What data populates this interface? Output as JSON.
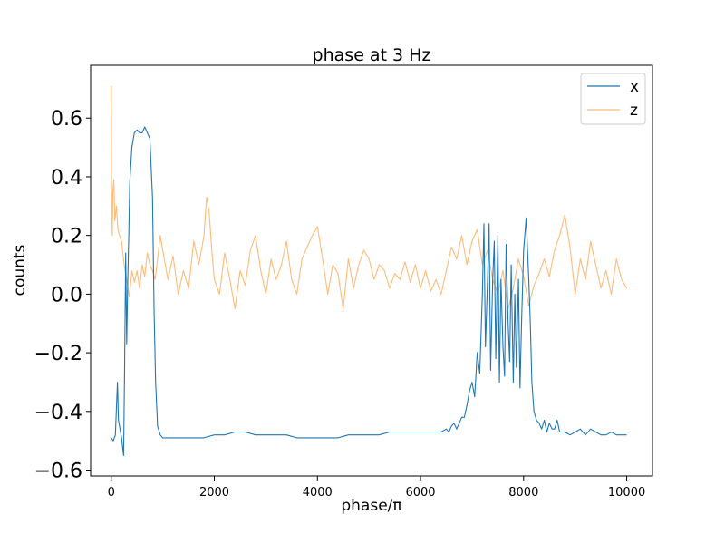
{
  "chart_data": {
    "type": "line",
    "title": "phase at 3 Hz",
    "xlabel": "phase/π",
    "ylabel": "counts",
    "xlim": [
      -400,
      10500
    ],
    "ylim": [
      -0.62,
      0.78
    ],
    "x_ticks": [
      0,
      2000,
      4000,
      6000,
      8000,
      10000
    ],
    "x_tick_labels": [
      "0",
      "2000",
      "4000",
      "6000",
      "8000",
      "10000"
    ],
    "y_ticks": [
      -0.6,
      -0.4,
      -0.2,
      0.0,
      0.2,
      0.4,
      0.6
    ],
    "y_tick_labels": [
      "−0.6",
      "−0.4",
      "−0.2",
      "0.0",
      "0.2",
      "0.4",
      "0.6"
    ],
    "grid": false,
    "legend": {
      "position": "top-right",
      "entries": [
        "x",
        "z"
      ]
    },
    "series": [
      {
        "name": "x",
        "color": "#1f77b4",
        "x": [
          0,
          40,
          80,
          120,
          140,
          160,
          200,
          240,
          260,
          280,
          300,
          320,
          340,
          360,
          400,
          450,
          500,
          550,
          600,
          650,
          700,
          750,
          800,
          830,
          860,
          900,
          950,
          1000,
          1100,
          1200,
          1400,
          1600,
          1800,
          2000,
          2200,
          2400,
          2600,
          2800,
          3000,
          3200,
          3400,
          3600,
          3800,
          4000,
          4200,
          4400,
          4600,
          4800,
          5000,
          5200,
          5400,
          5600,
          5800,
          6000,
          6200,
          6400,
          6500,
          6550,
          6600,
          6650,
          6700,
          6750,
          6800,
          6850,
          6900,
          6950,
          7000,
          7050,
          7100,
          7150,
          7200,
          7230,
          7260,
          7300,
          7330,
          7360,
          7400,
          7430,
          7460,
          7500,
          7530,
          7560,
          7600,
          7630,
          7660,
          7700,
          7730,
          7760,
          7800,
          7830,
          7860,
          7900,
          7930,
          7960,
          8000,
          8050,
          8100,
          8130,
          8160,
          8200,
          8250,
          8300,
          8350,
          8400,
          8450,
          8500,
          8550,
          8600,
          8650,
          8700,
          8800,
          8900,
          9000,
          9100,
          9200,
          9300,
          9400,
          9500,
          9600,
          9700,
          9800,
          9900,
          10000
        ],
        "y": [
          -0.49,
          -0.5,
          -0.48,
          -0.3,
          -0.43,
          -0.45,
          -0.49,
          -0.55,
          -0.25,
          0.14,
          -0.17,
          0.05,
          0.2,
          0.38,
          0.5,
          0.55,
          0.56,
          0.55,
          0.55,
          0.57,
          0.55,
          0.53,
          0.33,
          -0.05,
          -0.3,
          -0.45,
          -0.48,
          -0.49,
          -0.49,
          -0.49,
          -0.49,
          -0.49,
          -0.49,
          -0.48,
          -0.48,
          -0.47,
          -0.47,
          -0.48,
          -0.48,
          -0.48,
          -0.48,
          -0.49,
          -0.49,
          -0.49,
          -0.49,
          -0.49,
          -0.48,
          -0.48,
          -0.48,
          -0.48,
          -0.47,
          -0.47,
          -0.47,
          -0.47,
          -0.47,
          -0.47,
          -0.46,
          -0.47,
          -0.45,
          -0.44,
          -0.46,
          -0.44,
          -0.42,
          -0.42,
          -0.38,
          -0.33,
          -0.3,
          -0.35,
          -0.2,
          -0.27,
          0.0,
          0.24,
          -0.18,
          0.05,
          0.24,
          -0.26,
          0.05,
          0.18,
          -0.22,
          0.2,
          -0.3,
          0.05,
          -0.18,
          -0.28,
          0.17,
          -0.1,
          -0.23,
          0.1,
          -0.3,
          0.0,
          -0.25,
          0.05,
          -0.32,
          -0.1,
          0.15,
          0.26,
          0.05,
          -0.1,
          -0.3,
          -0.4,
          -0.43,
          -0.44,
          -0.46,
          -0.43,
          -0.47,
          -0.44,
          -0.46,
          -0.46,
          -0.43,
          -0.47,
          -0.47,
          -0.48,
          -0.47,
          -0.46,
          -0.48,
          -0.46,
          -0.47,
          -0.48,
          -0.48,
          -0.47,
          -0.48,
          -0.48,
          -0.48
        ]
      },
      {
        "name": "z",
        "color": "#ffbb78",
        "x": [
          0,
          5,
          10,
          20,
          30,
          50,
          70,
          100,
          130,
          160,
          200,
          250,
          300,
          350,
          400,
          450,
          500,
          550,
          600,
          650,
          700,
          750,
          800,
          850,
          900,
          950,
          1000,
          1100,
          1200,
          1300,
          1400,
          1500,
          1600,
          1700,
          1800,
          1850,
          1900,
          1950,
          2000,
          2100,
          2200,
          2300,
          2400,
          2500,
          2600,
          2700,
          2800,
          2900,
          3000,
          3100,
          3200,
          3300,
          3400,
          3500,
          3600,
          3700,
          3800,
          3900,
          4000,
          4100,
          4200,
          4300,
          4400,
          4500,
          4600,
          4700,
          4800,
          4900,
          5000,
          5100,
          5200,
          5300,
          5400,
          5500,
          5600,
          5700,
          5800,
          5900,
          6000,
          6100,
          6200,
          6300,
          6400,
          6500,
          6600,
          6700,
          6800,
          6900,
          7000,
          7100,
          7200,
          7300,
          7400,
          7500,
          7600,
          7700,
          7800,
          7900,
          8000,
          8100,
          8200,
          8300,
          8400,
          8500,
          8600,
          8700,
          8800,
          8900,
          9000,
          9100,
          9200,
          9300,
          9400,
          9500,
          9600,
          9700,
          9800,
          9900,
          10000
        ],
        "y": [
          0.71,
          0.4,
          0.3,
          0.2,
          0.35,
          0.39,
          0.25,
          0.3,
          0.22,
          0.2,
          0.18,
          0.1,
          0.05,
          -0.01,
          0.08,
          0.04,
          0.08,
          0.02,
          0.1,
          0.06,
          0.14,
          0.1,
          0.08,
          0.05,
          0.12,
          0.2,
          0.15,
          0.05,
          0.13,
          0.0,
          0.08,
          0.02,
          0.18,
          0.1,
          0.2,
          0.33,
          0.28,
          0.15,
          0.05,
          0.0,
          0.14,
          0.05,
          -0.05,
          0.08,
          0.03,
          0.15,
          0.2,
          0.08,
          0.0,
          0.12,
          0.05,
          0.1,
          0.18,
          0.05,
          0.0,
          0.12,
          0.16,
          0.2,
          0.23,
          0.12,
          0.0,
          0.1,
          0.07,
          -0.05,
          0.12,
          0.02,
          0.1,
          0.15,
          0.12,
          0.05,
          0.1,
          0.08,
          0.02,
          0.07,
          0.05,
          0.11,
          0.04,
          0.1,
          0.02,
          0.08,
          0.01,
          0.05,
          0.0,
          0.08,
          0.16,
          0.12,
          0.2,
          0.1,
          0.18,
          0.22,
          0.1,
          0.15,
          0.05,
          0.0,
          0.08,
          -0.05,
          0.02,
          0.12,
          0.06,
          -0.04,
          0.03,
          0.07,
          0.12,
          0.06,
          0.15,
          0.2,
          0.27,
          0.16,
          0.0,
          0.12,
          0.05,
          0.18,
          0.1,
          0.02,
          0.08,
          0.0,
          0.12,
          0.05,
          0.02
        ]
      }
    ]
  }
}
